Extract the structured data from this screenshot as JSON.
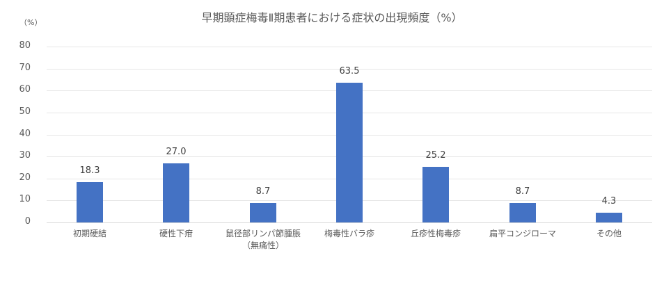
{
  "chart_data": {
    "type": "bar",
    "title": "早期顕症梅毒Ⅱ期患者における症状の出現頻度（%）",
    "ylabel": "（%）",
    "xlabel": "",
    "categories": [
      "初期硬結",
      "硬性下疳",
      "鼠径部リンパ節腫脹（無痛性）",
      "梅毒性バラ疹",
      "丘疹性梅毒疹",
      "扁平コンジローマ",
      "その他"
    ],
    "category_lines": [
      [
        "初期硬結"
      ],
      [
        "硬性下疳"
      ],
      [
        "鼠径部リンパ節腫脹",
        "（無痛性）"
      ],
      [
        "梅毒性バラ疹"
      ],
      [
        "丘疹性梅毒疹"
      ],
      [
        "扁平コンジローマ"
      ],
      [
        "その他"
      ]
    ],
    "values": [
      18.3,
      27.0,
      8.7,
      63.5,
      25.2,
      8.7,
      4.3
    ],
    "value_labels": [
      "18.3",
      "27.0",
      "8.7",
      "63.5",
      "25.2",
      "8.7",
      "4.3"
    ],
    "ylim": [
      0,
      80
    ],
    "yticks": [
      "0",
      "10",
      "20",
      "30",
      "40",
      "50",
      "60",
      "70",
      "80"
    ],
    "grid": true,
    "legend": "none",
    "bar_color": "#4472C4"
  }
}
